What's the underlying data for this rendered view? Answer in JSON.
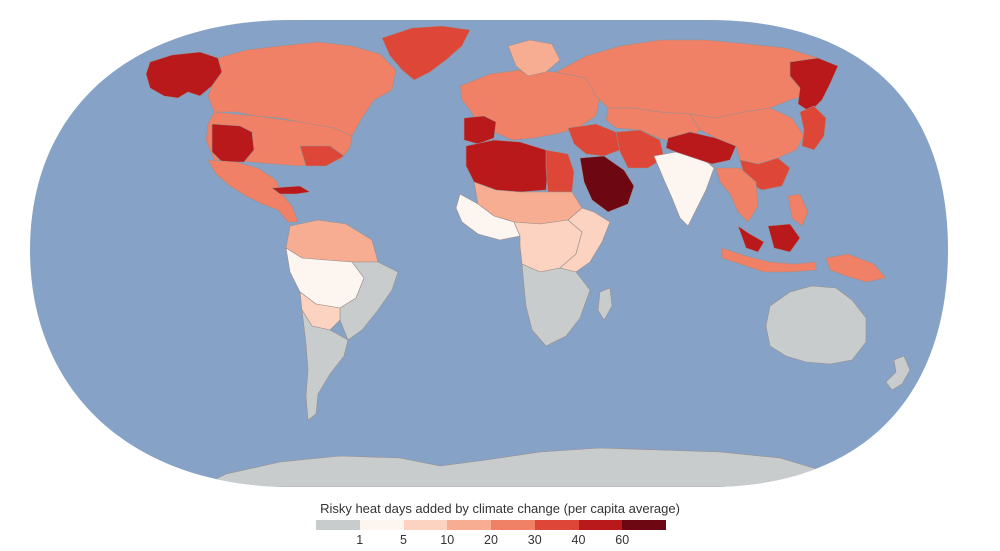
{
  "legend": {
    "title": "Risky heat days added by climate change (per capita average)",
    "bins": [
      {
        "range": "0-1",
        "color": "#c9cccd"
      },
      {
        "range": "1-5",
        "color": "#fdf5f0"
      },
      {
        "range": "5-10",
        "color": "#fbd3c0"
      },
      {
        "range": "10-20",
        "color": "#f6ad92"
      },
      {
        "range": "20-30",
        "color": "#f08066"
      },
      {
        "range": "30-40",
        "color": "#de4638"
      },
      {
        "range": "40-60",
        "color": "#b9191b"
      },
      {
        "range": "60+",
        "color": "#6d0712"
      }
    ],
    "tick_labels": [
      "1",
      "5",
      "10",
      "20",
      "30",
      "40",
      "60"
    ]
  },
  "map": {
    "ocean_color": "#86a2c7",
    "border_color": "#9a8f8c",
    "regions": [
      {
        "name": "alaska",
        "level": 6
      },
      {
        "name": "canada",
        "level": 4
      },
      {
        "name": "greenland",
        "level": 5
      },
      {
        "name": "usa",
        "level": 4
      },
      {
        "name": "usa-southwest",
        "level": 6
      },
      {
        "name": "usa-southeast",
        "level": 5
      },
      {
        "name": "mexico-central-america",
        "level": 4
      },
      {
        "name": "cuba",
        "level": 6
      },
      {
        "name": "colombia-venezuela",
        "level": 3
      },
      {
        "name": "amazon",
        "level": 1
      },
      {
        "name": "brazil-east",
        "level": 0
      },
      {
        "name": "bolivia-paraguay",
        "level": 2
      },
      {
        "name": "southern-cone",
        "level": 0
      },
      {
        "name": "europe",
        "level": 4
      },
      {
        "name": "iberia",
        "level": 6
      },
      {
        "name": "scandinavia",
        "level": 3
      },
      {
        "name": "russia",
        "level": 4
      },
      {
        "name": "russia-far-east",
        "level": 6
      },
      {
        "name": "north-africa",
        "level": 6
      },
      {
        "name": "egypt",
        "level": 5
      },
      {
        "name": "sahel",
        "level": 3
      },
      {
        "name": "west-africa",
        "level": 1
      },
      {
        "name": "central-africa",
        "level": 2
      },
      {
        "name": "east-africa",
        "level": 2
      },
      {
        "name": "southern-africa",
        "level": 0
      },
      {
        "name": "madagascar",
        "level": 0
      },
      {
        "name": "middle-east",
        "level": 5
      },
      {
        "name": "arabia",
        "level": 7
      },
      {
        "name": "iran",
        "level": 5
      },
      {
        "name": "central-asia",
        "level": 4
      },
      {
        "name": "india",
        "level": 1
      },
      {
        "name": "himalaya",
        "level": 6
      },
      {
        "name": "china",
        "level": 4
      },
      {
        "name": "china-south",
        "level": 5
      },
      {
        "name": "japan-korea",
        "level": 5
      },
      {
        "name": "southeast-asia",
        "level": 4
      },
      {
        "name": "malaysia-borneo",
        "level": 6
      },
      {
        "name": "indonesia",
        "level": 4
      },
      {
        "name": "philippines",
        "level": 4
      },
      {
        "name": "new-guinea",
        "level": 4
      },
      {
        "name": "australia",
        "level": 0
      },
      {
        "name": "new-zealand",
        "level": 0
      },
      {
        "name": "antarctica",
        "level": 0
      }
    ]
  }
}
